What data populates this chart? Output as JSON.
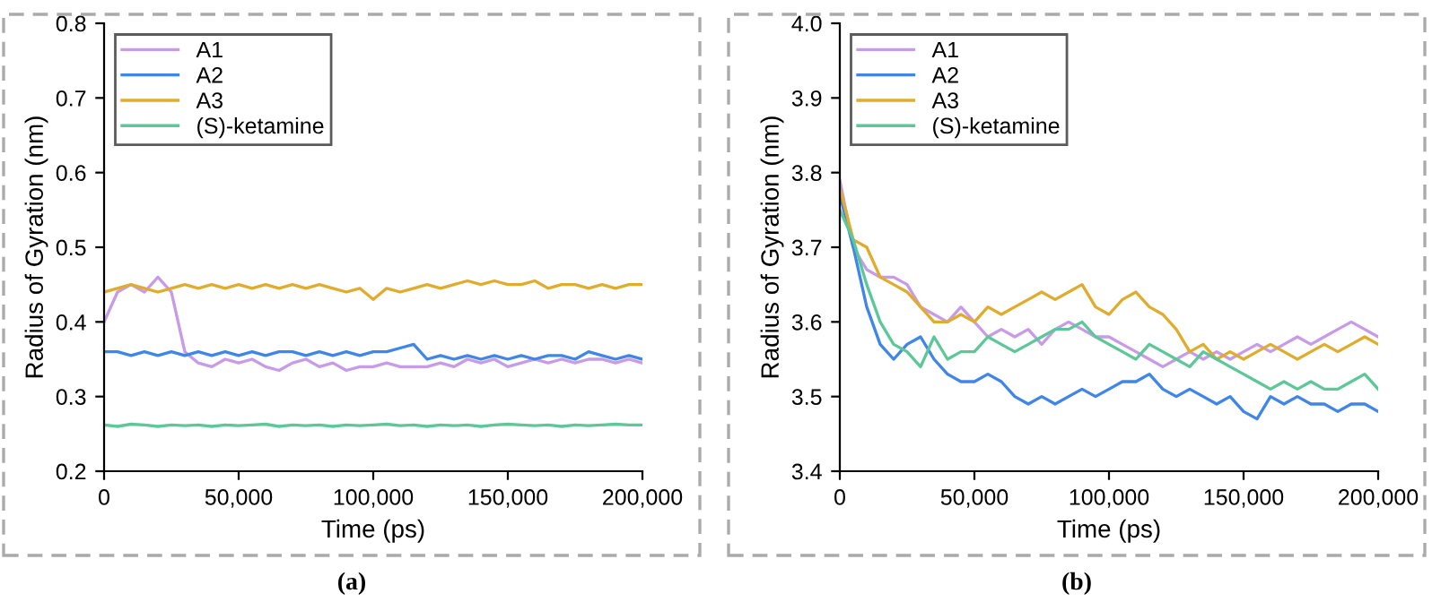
{
  "chart_data": [
    {
      "type": "line",
      "xlabel": "Time (ps)",
      "ylabel": "Radius of Gyration (nm)",
      "annotations": [
        "(a)"
      ],
      "legend": "top left",
      "grid": false,
      "x": [
        0,
        5000,
        10000,
        15000,
        20000,
        25000,
        30000,
        35000,
        40000,
        45000,
        50000,
        55000,
        60000,
        65000,
        70000,
        75000,
        80000,
        85000,
        90000,
        95000,
        100000,
        105000,
        110000,
        115000,
        120000,
        125000,
        130000,
        135000,
        140000,
        145000,
        150000,
        155000,
        160000,
        165000,
        170000,
        175000,
        180000,
        185000,
        190000,
        195000,
        200000
      ],
      "xlim": [
        0,
        200000
      ],
      "xticks": [
        0,
        {
          "value": 50000,
          "label": "50,000"
        },
        {
          "value": 100000,
          "label": "100,000"
        },
        {
          "value": 150000,
          "label": "150,000"
        },
        {
          "value": 200000,
          "label": "200,000"
        }
      ],
      "ylim": [
        0.2,
        0.8
      ],
      "yticks": [
        0.2,
        0.3,
        0.4,
        0.5,
        0.6,
        0.7,
        0.8
      ],
      "series": [
        {
          "name": "A1",
          "color": "#c89be8",
          "values": [
            0.4,
            0.44,
            0.45,
            0.44,
            0.46,
            0.44,
            0.36,
            0.345,
            0.34,
            0.35,
            0.345,
            0.35,
            0.34,
            0.335,
            0.345,
            0.35,
            0.34,
            0.345,
            0.335,
            0.34,
            0.34,
            0.345,
            0.34,
            0.34,
            0.34,
            0.345,
            0.34,
            0.35,
            0.345,
            0.35,
            0.34,
            0.345,
            0.35,
            0.345,
            0.35,
            0.345,
            0.35,
            0.35,
            0.345,
            0.35,
            0.345
          ]
        },
        {
          "name": "A2",
          "color": "#3f86e8",
          "values": [
            0.36,
            0.36,
            0.355,
            0.36,
            0.355,
            0.36,
            0.355,
            0.36,
            0.355,
            0.36,
            0.355,
            0.36,
            0.355,
            0.36,
            0.36,
            0.355,
            0.36,
            0.355,
            0.36,
            0.355,
            0.36,
            0.36,
            0.365,
            0.37,
            0.35,
            0.355,
            0.35,
            0.355,
            0.35,
            0.355,
            0.35,
            0.355,
            0.35,
            0.355,
            0.355,
            0.35,
            0.36,
            0.355,
            0.35,
            0.355,
            0.35
          ]
        },
        {
          "name": "A3",
          "color": "#e0ac2e",
          "values": [
            0.44,
            0.445,
            0.45,
            0.445,
            0.44,
            0.445,
            0.45,
            0.445,
            0.45,
            0.445,
            0.45,
            0.445,
            0.45,
            0.445,
            0.45,
            0.445,
            0.45,
            0.445,
            0.44,
            0.445,
            0.43,
            0.445,
            0.44,
            0.445,
            0.45,
            0.445,
            0.45,
            0.455,
            0.45,
            0.455,
            0.45,
            0.45,
            0.455,
            0.445,
            0.45,
            0.45,
            0.445,
            0.45,
            0.445,
            0.45,
            0.45
          ]
        },
        {
          "name": "(S)-ketamine",
          "color": "#5ec79a",
          "values": [
            0.262,
            0.26,
            0.263,
            0.262,
            0.26,
            0.262,
            0.261,
            0.262,
            0.26,
            0.262,
            0.261,
            0.262,
            0.263,
            0.26,
            0.262,
            0.261,
            0.262,
            0.26,
            0.262,
            0.261,
            0.262,
            0.263,
            0.261,
            0.262,
            0.26,
            0.262,
            0.261,
            0.262,
            0.26,
            0.262,
            0.263,
            0.262,
            0.261,
            0.262,
            0.26,
            0.262,
            0.261,
            0.262,
            0.263,
            0.262,
            0.262
          ]
        }
      ]
    },
    {
      "type": "line",
      "xlabel": "Time (ps)",
      "ylabel": "Radius of Gyration (nm)",
      "annotations": [
        "(b)"
      ],
      "legend": "top left",
      "grid": false,
      "x": [
        0,
        5000,
        10000,
        15000,
        20000,
        25000,
        30000,
        35000,
        40000,
        45000,
        50000,
        55000,
        60000,
        65000,
        70000,
        75000,
        80000,
        85000,
        90000,
        95000,
        100000,
        105000,
        110000,
        115000,
        120000,
        125000,
        130000,
        135000,
        140000,
        145000,
        150000,
        155000,
        160000,
        165000,
        170000,
        175000,
        180000,
        185000,
        190000,
        195000,
        200000
      ],
      "xlim": [
        0,
        200000
      ],
      "xticks": [
        0,
        {
          "value": 50000,
          "label": "50,000"
        },
        {
          "value": 100000,
          "label": "100,000"
        },
        {
          "value": 150000,
          "label": "150,000"
        },
        {
          "value": 200000,
          "label": "200,000"
        }
      ],
      "ylim": [
        3.4,
        4.0
      ],
      "yticks": [
        3.4,
        3.5,
        3.6,
        3.7,
        3.8,
        3.9,
        {
          "value": 4.0,
          "label": "4.0"
        }
      ],
      "series": [
        {
          "name": "A1",
          "color": "#c89be8",
          "values": [
            3.79,
            3.7,
            3.67,
            3.66,
            3.66,
            3.65,
            3.62,
            3.61,
            3.6,
            3.62,
            3.6,
            3.58,
            3.59,
            3.58,
            3.59,
            3.57,
            3.59,
            3.6,
            3.59,
            3.58,
            3.58,
            3.57,
            3.56,
            3.55,
            3.54,
            3.55,
            3.56,
            3.55,
            3.56,
            3.55,
            3.56,
            3.57,
            3.56,
            3.57,
            3.58,
            3.57,
            3.58,
            3.59,
            3.6,
            3.59,
            3.58
          ]
        },
        {
          "name": "A2",
          "color": "#3f86e8",
          "values": [
            3.77,
            3.7,
            3.62,
            3.57,
            3.55,
            3.57,
            3.58,
            3.55,
            3.53,
            3.52,
            3.52,
            3.53,
            3.52,
            3.5,
            3.49,
            3.5,
            3.49,
            3.5,
            3.51,
            3.5,
            3.51,
            3.52,
            3.52,
            3.53,
            3.51,
            3.5,
            3.51,
            3.5,
            3.49,
            3.5,
            3.48,
            3.47,
            3.5,
            3.49,
            3.5,
            3.49,
            3.49,
            3.48,
            3.49,
            3.49,
            3.48
          ]
        },
        {
          "name": "A3",
          "color": "#e0ac2e",
          "values": [
            3.78,
            3.71,
            3.7,
            3.66,
            3.65,
            3.64,
            3.62,
            3.6,
            3.6,
            3.61,
            3.6,
            3.62,
            3.61,
            3.62,
            3.63,
            3.64,
            3.63,
            3.64,
            3.65,
            3.62,
            3.61,
            3.63,
            3.64,
            3.62,
            3.61,
            3.59,
            3.56,
            3.57,
            3.55,
            3.56,
            3.55,
            3.56,
            3.57,
            3.56,
            3.55,
            3.56,
            3.57,
            3.56,
            3.57,
            3.58,
            3.57
          ]
        },
        {
          "name": "(S)-ketamine",
          "color": "#5ec79a",
          "values": [
            3.75,
            3.71,
            3.65,
            3.6,
            3.57,
            3.56,
            3.54,
            3.58,
            3.55,
            3.56,
            3.56,
            3.58,
            3.57,
            3.56,
            3.57,
            3.58,
            3.59,
            3.59,
            3.6,
            3.58,
            3.57,
            3.56,
            3.55,
            3.57,
            3.56,
            3.55,
            3.54,
            3.56,
            3.55,
            3.54,
            3.53,
            3.52,
            3.51,
            3.52,
            3.51,
            3.52,
            3.51,
            3.51,
            3.52,
            3.53,
            3.51
          ]
        }
      ]
    }
  ]
}
